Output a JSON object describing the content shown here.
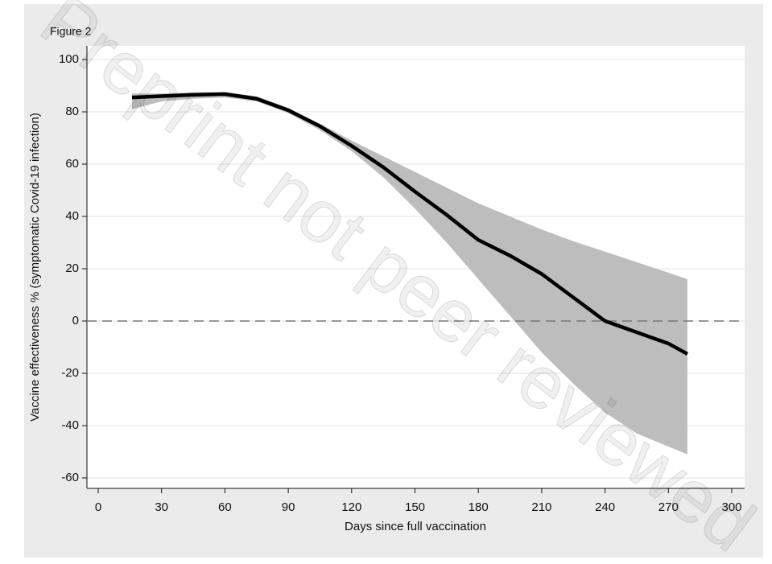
{
  "chart_data": {
    "type": "line",
    "title": "Figure 2",
    "xlabel": "Days since full vaccination",
    "ylabel": "Vaccine effectiveness % (symptomatic Covid-19 infection)",
    "watermark": "Preprint not peer reviewed",
    "x": [
      16,
      30,
      45,
      60,
      75,
      90,
      105,
      120,
      135,
      150,
      165,
      180,
      195,
      210,
      225,
      240,
      255,
      270,
      279
    ],
    "values": [
      85.5,
      86,
      86.5,
      86.8,
      85,
      80.6,
      74.5,
      67,
      58.8,
      49.5,
      40.6,
      31,
      25,
      18,
      9,
      0,
      -4.3,
      -8.6,
      -12.6
    ],
    "upper": [
      87,
      87,
      87.5,
      87.5,
      86,
      81.5,
      75.5,
      69,
      63,
      57,
      51,
      45,
      40,
      35,
      30.5,
      26.5,
      22.5,
      18.5,
      16
    ],
    "lower": [
      81,
      84,
      85,
      85.5,
      84,
      79.5,
      73,
      65,
      55,
      43,
      30,
      16,
      2,
      -12,
      -24,
      -35,
      -43,
      -48,
      -51
    ],
    "color": "#000000",
    "band_color": "#bdbdbd",
    "hline": 0,
    "xlim": [
      0,
      300
    ],
    "xticks": [
      0,
      30,
      60,
      90,
      120,
      150,
      180,
      210,
      240,
      270,
      300
    ],
    "ylim": [
      -60,
      100
    ],
    "yticks": [
      -60,
      -40,
      -20,
      0,
      20,
      40,
      60,
      80,
      100
    ],
    "grid": true
  }
}
